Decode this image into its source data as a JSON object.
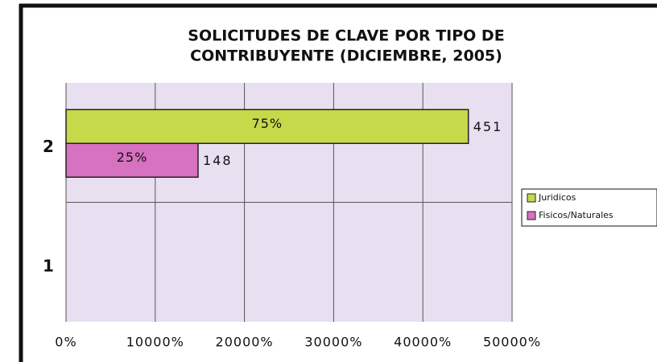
{
  "chart_data": {
    "type": "hbar",
    "title": [
      "SOLICITUDES DE CLAVE POR TIPO DE",
      "CONTRIBUYENTE (DICIEMBRE, 2005)"
    ],
    "categories": [
      "1",
      "2"
    ],
    "series": [
      {
        "name": "Juridicos",
        "color": "#c5d94b",
        "values": [
          null,
          451
        ],
        "value_labels": [
          null,
          "451"
        ],
        "percent_labels": [
          null,
          "75%"
        ]
      },
      {
        "name": "Fisicos/Naturales",
        "color": "#d672c0",
        "values": [
          null,
          148
        ],
        "value_labels": [
          null,
          "148"
        ],
        "percent_labels": [
          null,
          "25%"
        ]
      }
    ],
    "xlim": [
      0,
      500
    ],
    "xticks": [
      {
        "value": 0,
        "label": "0%"
      },
      {
        "value": 100,
        "label": "10000%"
      },
      {
        "value": 200,
        "label": "20000%"
      },
      {
        "value": 300,
        "label": "30000%"
      },
      {
        "value": 400,
        "label": "40000%"
      },
      {
        "value": 500,
        "label": "50000%"
      }
    ],
    "grid": true,
    "legend": "right"
  }
}
